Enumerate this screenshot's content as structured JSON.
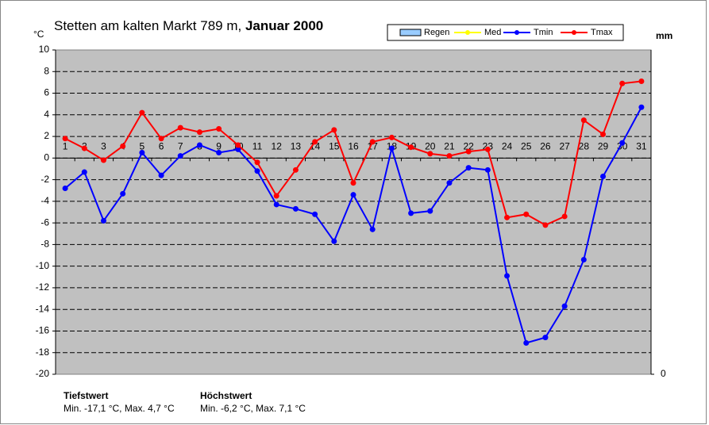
{
  "chart_data": {
    "type": "line",
    "title": "Stetten am kalten Markt 789 m,",
    "title_bold": "Januar 2000",
    "y_label": "°C",
    "y2_label": "mm",
    "categories": [
      1,
      2,
      3,
      4,
      5,
      6,
      7,
      8,
      9,
      10,
      11,
      12,
      13,
      14,
      15,
      16,
      17,
      18,
      19,
      20,
      21,
      22,
      23,
      24,
      25,
      26,
      27,
      28,
      29,
      30,
      31
    ],
    "series": [
      {
        "name": "Regen",
        "color": "#99ccff",
        "kind": "bar",
        "axis": "y2",
        "values": [
          null,
          null,
          null,
          null,
          null,
          null,
          null,
          null,
          null,
          null,
          null,
          null,
          null,
          null,
          null,
          null,
          null,
          null,
          null,
          null,
          null,
          null,
          null,
          null,
          null,
          null,
          null,
          null,
          null,
          null,
          null
        ]
      },
      {
        "name": "Med",
        "color": "#ffff00",
        "kind": "line",
        "values": [
          null,
          null,
          null,
          null,
          null,
          null,
          null,
          null,
          null,
          null,
          null,
          null,
          null,
          null,
          null,
          null,
          null,
          null,
          null,
          null,
          null,
          null,
          null,
          null,
          null,
          null,
          null,
          null,
          null,
          null,
          null
        ]
      },
      {
        "name": "Tmin",
        "color": "#0000ff",
        "kind": "line",
        "values": [
          -2.8,
          -1.3,
          -5.8,
          -3.3,
          0.5,
          -1.6,
          0.2,
          1.2,
          0.5,
          0.8,
          -1.2,
          -4.3,
          -4.7,
          -5.2,
          -7.7,
          -3.4,
          -6.6,
          0.9,
          -5.1,
          -4.9,
          -2.3,
          -0.9,
          -1.1,
          -10.9,
          -17.1,
          -16.6,
          -13.7,
          -9.4,
          -1.7,
          1.4,
          4.7
        ]
      },
      {
        "name": "Tmax",
        "color": "#ff0000",
        "kind": "line",
        "values": [
          1.8,
          0.9,
          -0.2,
          1.1,
          4.2,
          1.8,
          2.8,
          2.4,
          2.7,
          1.2,
          -0.4,
          -3.5,
          -1.1,
          1.5,
          2.6,
          -2.3,
          1.5,
          1.9,
          1.0,
          0.4,
          0.2,
          0.6,
          0.8,
          -5.5,
          -5.2,
          -6.2,
          -5.4,
          3.5,
          2.2,
          6.9,
          7.1
        ]
      }
    ],
    "ylim": [
      -20,
      10
    ],
    "yticks": [
      -20,
      -18,
      -16,
      -14,
      -12,
      -10,
      -8,
      -6,
      -4,
      -2,
      0,
      2,
      4,
      6,
      8,
      10
    ],
    "y2lim": [
      0,
      1
    ],
    "y2ticks": [
      0
    ],
    "grid": true,
    "background": "#c0c0c0",
    "annotations": [
      {
        "title": "Tiefstwert",
        "text": "Min. -17,1 °C, Max. 4,7 °C"
      },
      {
        "title": "Höchstwert",
        "text": "Min. -6,2 °C, Max. 7,1 °C"
      }
    ]
  }
}
